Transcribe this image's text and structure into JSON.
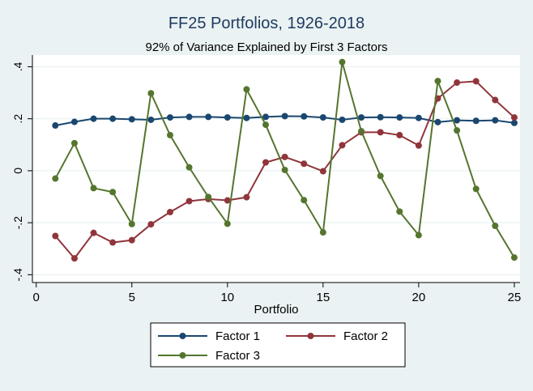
{
  "colors": {
    "background": "#eaf2f3",
    "plot_background": "#ffffff",
    "title": "#1e3a5f",
    "factor1": "#1a476f",
    "factor2": "#90353b",
    "factor3": "#55752f",
    "grid": "#eaf2f3",
    "axis": "#000000"
  },
  "chart_data": {
    "type": "line",
    "title": "FF25 Portfolios, 1926-2018",
    "subtitle": "92% of Variance Explained by First 3 Factors",
    "xlabel": "Portfolio",
    "ylabel": "",
    "xlim": [
      -0.2,
      25.3
    ],
    "ylim": [
      -0.43,
      0.445
    ],
    "x_ticks": [
      0,
      5,
      10,
      15,
      20,
      25
    ],
    "x_tick_labels": [
      "0",
      "5",
      "10",
      "15",
      "20",
      "25"
    ],
    "y_ticks": [
      -0.4,
      -0.2,
      0,
      0.2,
      0.4
    ],
    "y_tick_labels": [
      "-.4",
      "-.2",
      "0",
      ".2",
      ".4"
    ],
    "grid": "horizontal",
    "legend_position": "bottom",
    "x": [
      1,
      2,
      3,
      4,
      5,
      6,
      7,
      8,
      9,
      10,
      11,
      12,
      13,
      14,
      15,
      16,
      17,
      18,
      19,
      20,
      21,
      22,
      23,
      24,
      25
    ],
    "series": [
      {
        "name": "Factor 1",
        "color": "#1a476f",
        "values": [
          0.174,
          0.188,
          0.2,
          0.2,
          0.198,
          0.196,
          0.205,
          0.207,
          0.207,
          0.205,
          0.203,
          0.207,
          0.21,
          0.209,
          0.205,
          0.196,
          0.205,
          0.206,
          0.205,
          0.203,
          0.187,
          0.194,
          0.192,
          0.194,
          0.184
        ]
      },
      {
        "name": "Factor 2",
        "color": "#90353b",
        "values": [
          -0.251,
          -0.337,
          -0.239,
          -0.276,
          -0.267,
          -0.206,
          -0.159,
          -0.117,
          -0.109,
          -0.114,
          -0.102,
          0.032,
          0.053,
          0.027,
          -0.002,
          0.098,
          0.148,
          0.148,
          0.137,
          0.097,
          0.278,
          0.339,
          0.344,
          0.272,
          0.205
        ]
      },
      {
        "name": "Factor 3",
        "color": "#55752f",
        "values": [
          -0.03,
          0.106,
          -0.067,
          -0.082,
          -0.205,
          0.298,
          0.137,
          0.013,
          -0.101,
          -0.204,
          0.313,
          0.177,
          0.003,
          -0.113,
          -0.237,
          0.418,
          0.152,
          -0.02,
          -0.157,
          -0.248,
          0.345,
          0.155,
          -0.07,
          -0.212,
          -0.334
        ]
      }
    ]
  }
}
